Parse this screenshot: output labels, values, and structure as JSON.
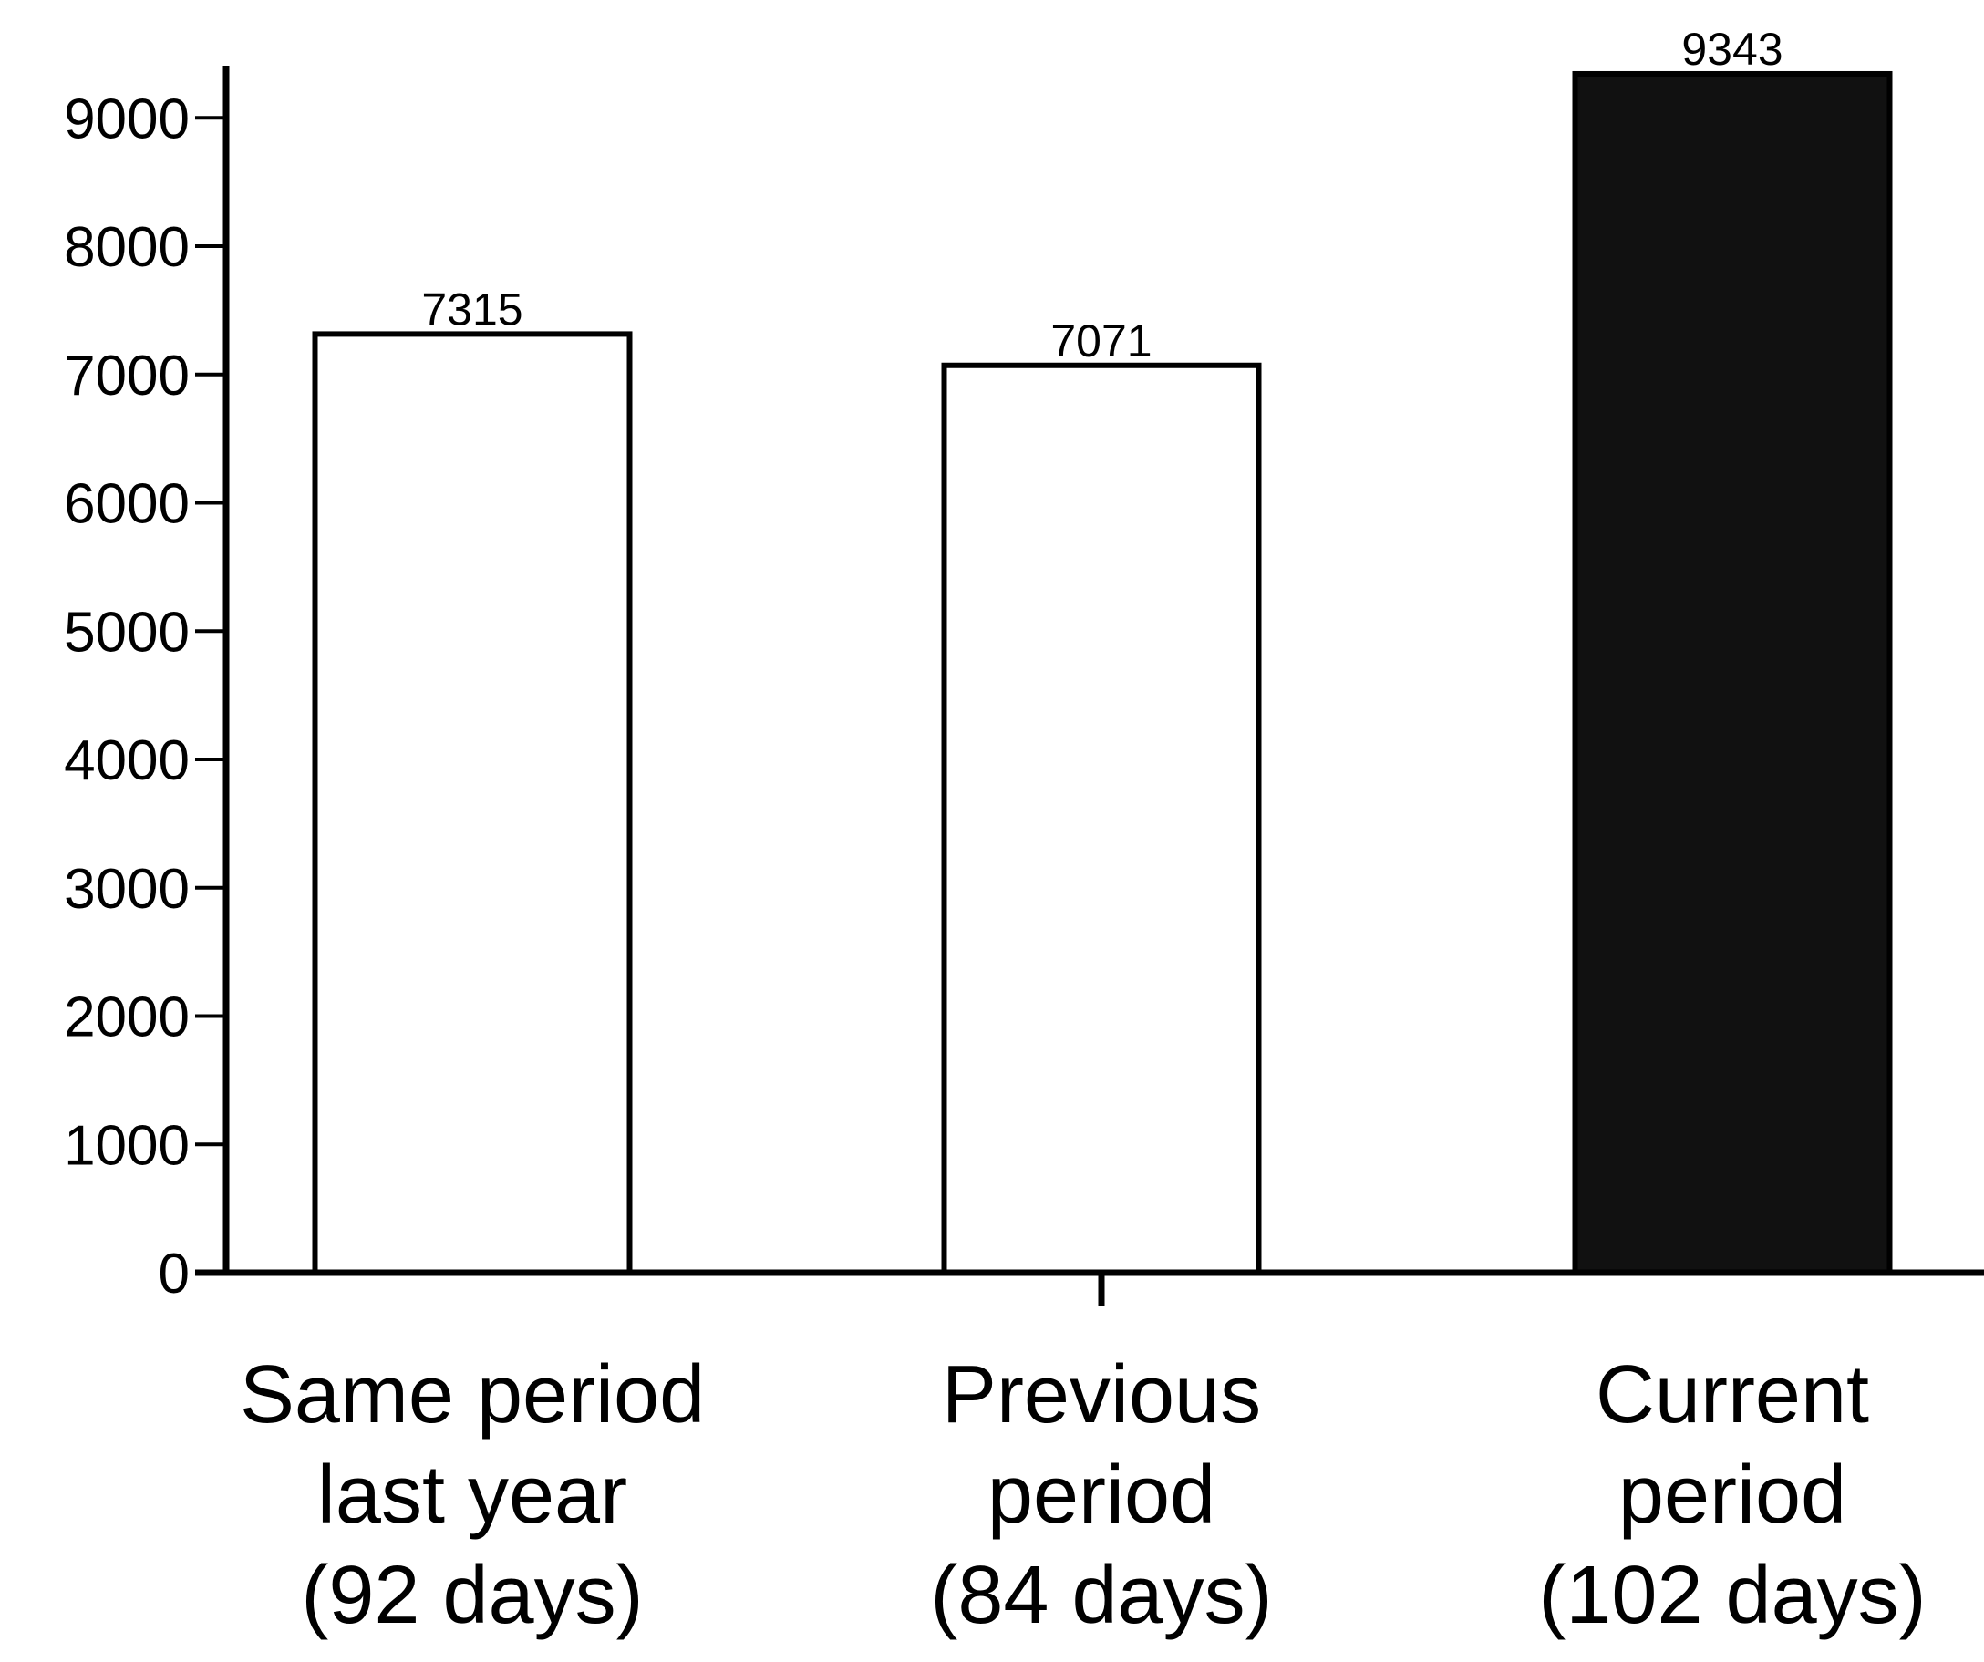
{
  "chart_data": {
    "type": "bar",
    "categories": [
      [
        "Same period",
        "last year",
        "(92 days)"
      ],
      [
        "Previous",
        "period",
        "(84 days)"
      ],
      [
        "Current",
        "period",
        "(102 days)"
      ]
    ],
    "values": [
      7315,
      7071,
      9343
    ],
    "value_labels": [
      "7315",
      "7071",
      "9343"
    ],
    "bar_fills": [
      "#ffffff",
      "#ffffff",
      "#111111"
    ],
    "yticks": [
      0,
      1000,
      2000,
      3000,
      4000,
      5000,
      6000,
      7000,
      8000,
      9000
    ],
    "ylim": [
      0,
      9400
    ],
    "title": "",
    "xlabel": "",
    "ylabel": "",
    "grid": false,
    "legend": "none"
  }
}
